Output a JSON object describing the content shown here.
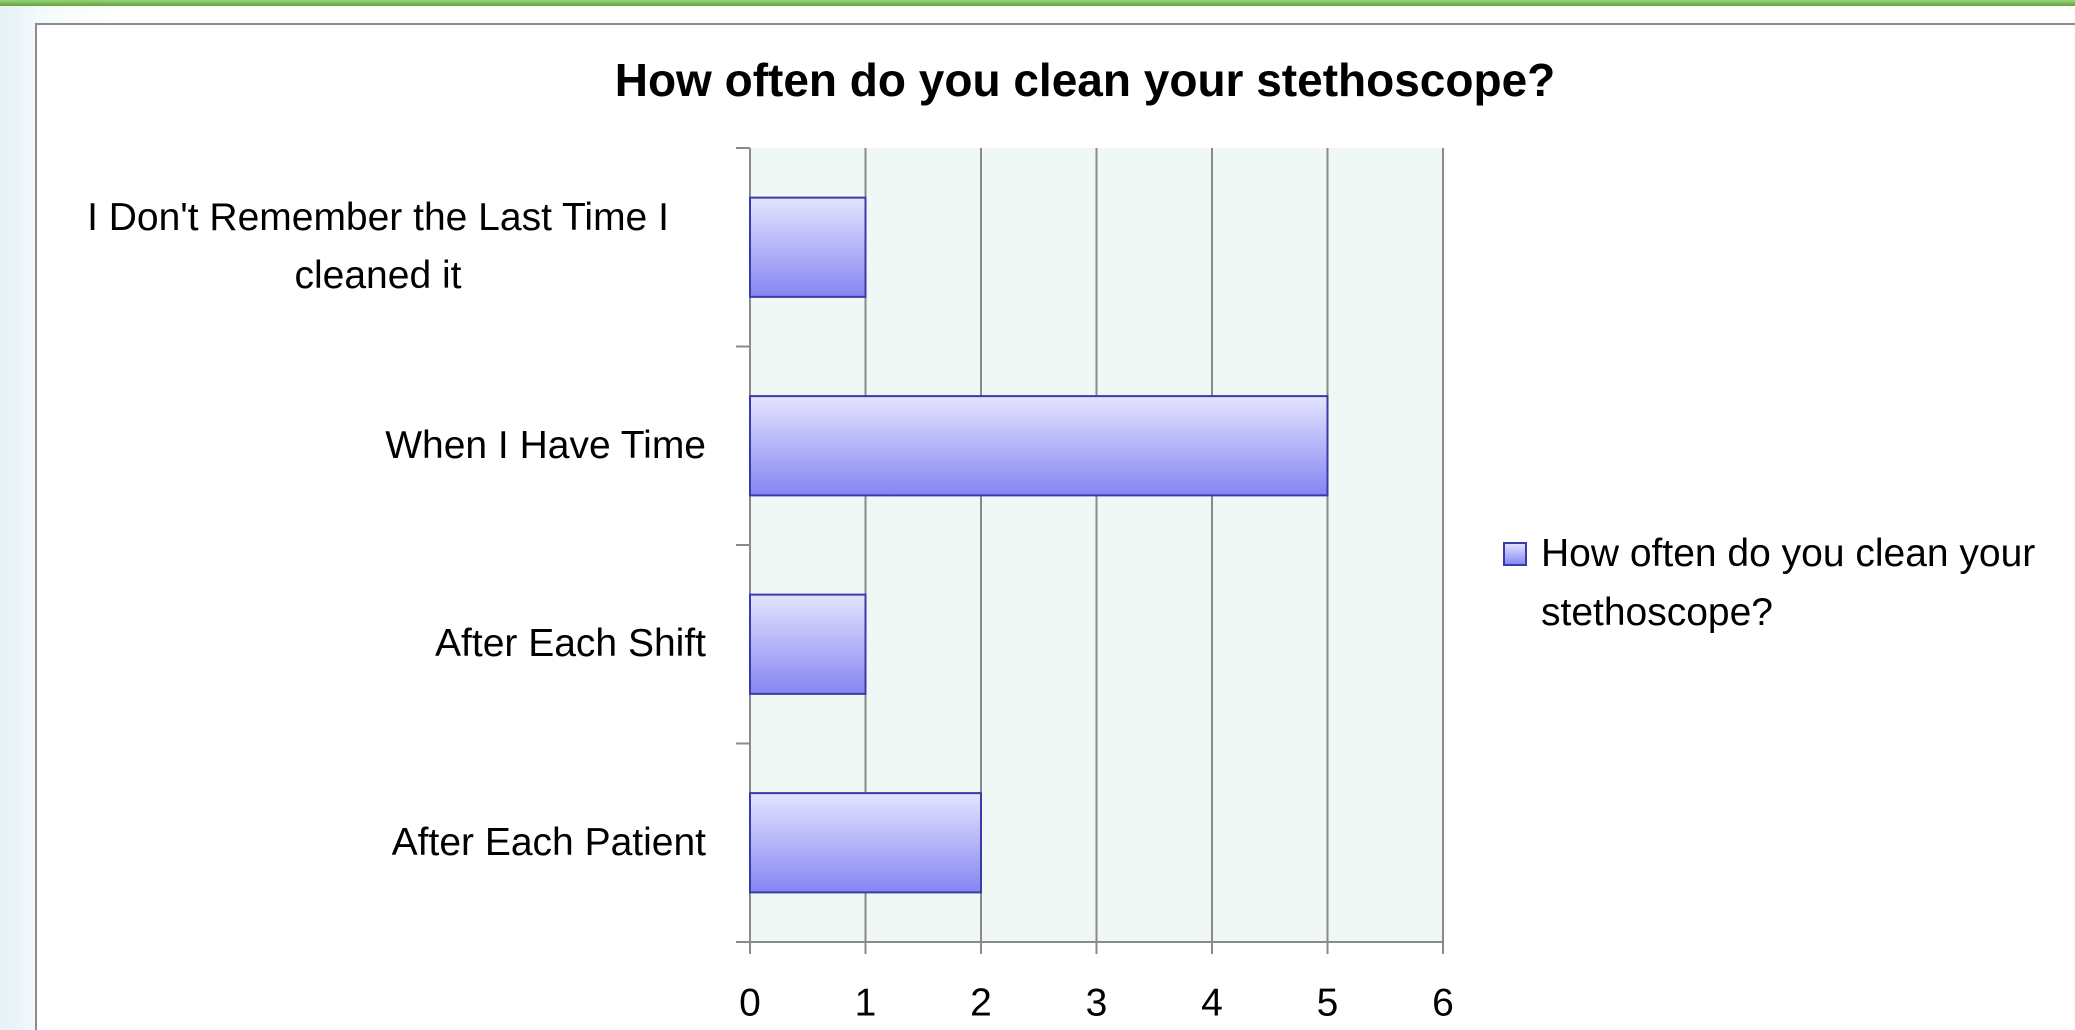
{
  "chart_data": {
    "type": "barh",
    "title": "How often do you clean your stethoscope?",
    "categories": [
      "I Don't Remember the Last Time I cleaned it",
      "When I Have Time",
      "After Each Shift",
      "After Each Patient"
    ],
    "series": [
      {
        "name": "How often do you clean your stethoscope?",
        "color": "#8f8ff5",
        "values": [
          1,
          5,
          1,
          2
        ]
      }
    ],
    "xlim": [
      0,
      6
    ],
    "xticks": [
      0,
      1,
      2,
      3,
      4,
      5,
      6
    ],
    "grid": true,
    "legend": "right"
  }
}
